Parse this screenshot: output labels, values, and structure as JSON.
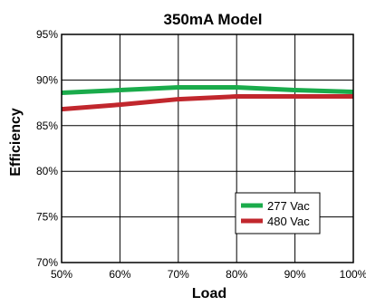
{
  "chart_data": {
    "type": "line",
    "title": "350mA Model",
    "xlabel": "Load",
    "ylabel": "Efficiency",
    "x": [
      50,
      60,
      70,
      80,
      90,
      100
    ],
    "x_tick_labels": [
      "50%",
      "60%",
      "70%",
      "80%",
      "90%",
      "100%"
    ],
    "y_tick_values": [
      70,
      75,
      80,
      85,
      90,
      95
    ],
    "y_tick_labels": [
      "70%",
      "75%",
      "80%",
      "85%",
      "90%",
      "95%"
    ],
    "xlim": [
      50,
      100
    ],
    "ylim": [
      70,
      95
    ],
    "grid": true,
    "legend_position": "bottom-right",
    "series": [
      {
        "name": "277 Vac",
        "color": "#1aab4b",
        "values": [
          88.6,
          88.9,
          89.2,
          89.2,
          88.9,
          88.7
        ]
      },
      {
        "name": "480 Vac",
        "color": "#c1272d",
        "values": [
          86.8,
          87.3,
          87.9,
          88.2,
          88.2,
          88.2
        ]
      }
    ]
  }
}
